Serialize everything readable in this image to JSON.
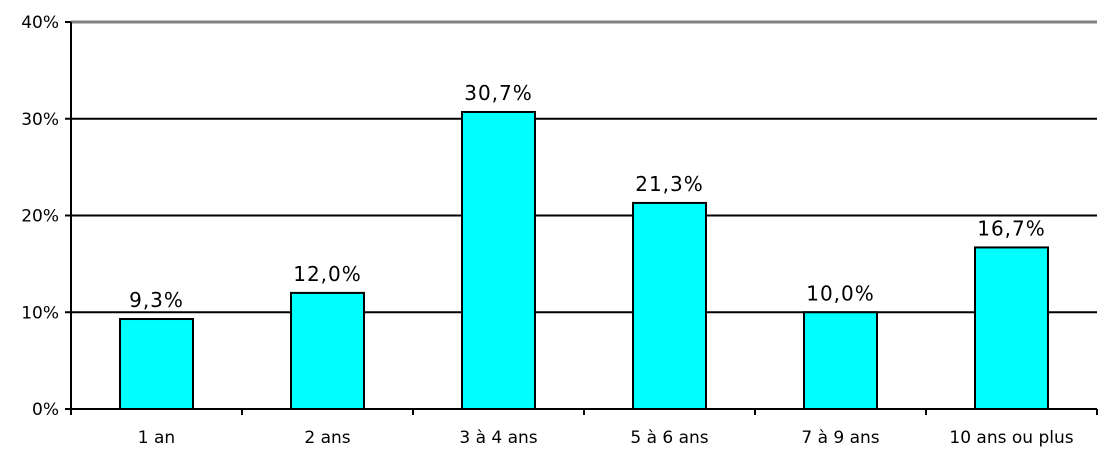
{
  "chart_data": {
    "type": "bar",
    "title": "",
    "xlabel": "",
    "ylabel": "",
    "categories": [
      "1 an",
      "2 ans",
      "3 à 4 ans",
      "5 à 6 ans",
      "7 à 9 ans",
      "10 ans ou plus"
    ],
    "values": [
      9.3,
      12.0,
      30.7,
      21.3,
      10.0,
      16.7
    ],
    "data_labels": [
      "9,3%",
      "12,0%",
      "30,7%",
      "21,3%",
      "10,0%",
      "16,7%"
    ],
    "ylim": [
      0,
      40
    ],
    "yticks": [
      0,
      10,
      20,
      30,
      40
    ],
    "ytick_labels": [
      "0%",
      "10%",
      "20%",
      "30%",
      "40%"
    ],
    "grid": true,
    "legend": "none",
    "colors": {
      "bar_fill": "#00FFFF",
      "bar_stroke": "#000000",
      "gridline": "#000000",
      "top_border": "#808080"
    }
  }
}
